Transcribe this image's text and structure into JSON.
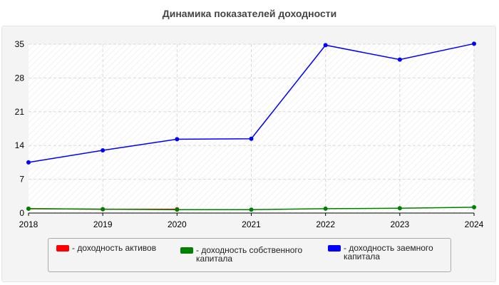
{
  "chart_data": {
    "type": "line",
    "title": "Динамика показателей доходности",
    "categories": [
      "2018",
      "2019",
      "2020",
      "2021",
      "2022",
      "2023",
      "2024"
    ],
    "y_ticks": [
      "0",
      "7",
      "14",
      "21",
      "28",
      "35"
    ],
    "ylim": [
      0,
      35
    ],
    "grid": true,
    "legend_position": "bottom",
    "series": [
      {
        "name": "- доходность активов",
        "color": "#ff0000",
        "values": [
          0.9,
          0.8,
          0.8,
          null,
          null,
          null,
          null
        ]
      },
      {
        "name": "- доходность собственного капитала",
        "color": "#008000",
        "values": [
          0.9,
          0.8,
          0.7,
          0.7,
          0.9,
          1.0,
          1.2
        ]
      },
      {
        "name": "- доходность заемного капитала",
        "color": "#0000ff",
        "values": [
          10.5,
          13.0,
          15.3,
          15.4,
          34.8,
          31.8,
          35.1
        ]
      }
    ]
  }
}
